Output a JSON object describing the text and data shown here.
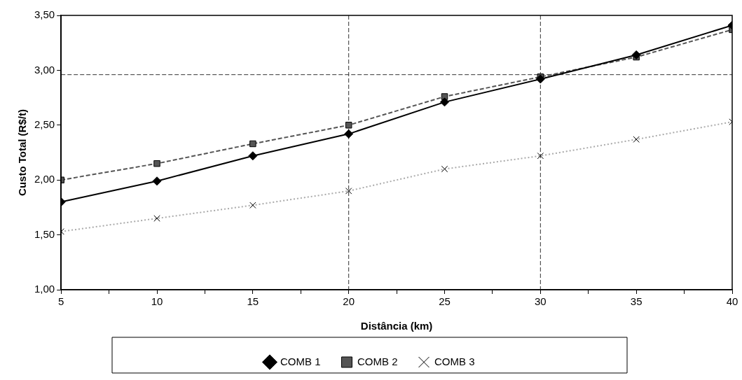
{
  "chart_data": {
    "type": "line",
    "xlabel": "Distância (km)",
    "ylabel": "Custo Total (R$/t)",
    "x": [
      5,
      10,
      15,
      20,
      25,
      30,
      35,
      40
    ],
    "series": [
      {
        "name": "COMB 1",
        "color": "#000000",
        "marker": "diamond",
        "line_style": "solid",
        "values": [
          1.8,
          1.99,
          2.22,
          2.42,
          2.71,
          2.92,
          3.14,
          3.41
        ]
      },
      {
        "name": "COMB 2",
        "color": "#555555",
        "marker": "square",
        "line_style": "dashed",
        "values": [
          2.0,
          2.15,
          2.33,
          2.5,
          2.76,
          2.94,
          3.12,
          3.37
        ]
      },
      {
        "name": "COMB 3",
        "color": "#aaaaaa",
        "marker": "cross",
        "line_style": "dotted",
        "values": [
          1.53,
          1.65,
          1.77,
          1.9,
          2.1,
          2.22,
          2.37,
          2.53
        ]
      }
    ],
    "xlim": [
      5,
      40
    ],
    "xticks": [
      5,
      {
        "value": 7.5,
        "label": null
      },
      10,
      {
        "value": 12.5,
        "label": null
      },
      15,
      {
        "value": 17.5,
        "label": null
      },
      20,
      {
        "value": 22.5,
        "label": null
      },
      25,
      {
        "value": 27.5,
        "label": null
      },
      30,
      {
        "value": 32.5,
        "label": null
      },
      35,
      {
        "value": 37.5,
        "label": null
      },
      40
    ],
    "ylim": [
      1,
      3.5
    ],
    "yticks": [
      {
        "value": 1,
        "label": "1,00"
      },
      {
        "value": 1.5,
        "label": "1,50"
      },
      {
        "value": 2,
        "label": "2,00"
      },
      {
        "value": 2.5,
        "label": "2,50"
      },
      {
        "value": 3,
        "label": "3,00"
      },
      {
        "value": 3.5,
        "label": "3,50"
      }
    ],
    "ref_lines": [
      {
        "axis": "x",
        "value": 20,
        "color": "#333333",
        "line_style": "dashed"
      },
      {
        "axis": "x",
        "value": 30,
        "color": "#333333",
        "line_style": "dashed"
      },
      {
        "axis": "y",
        "value": 2.96,
        "color": "#333333",
        "line_style": "dashed"
      }
    ],
    "grid": false,
    "legend": "bottom"
  }
}
